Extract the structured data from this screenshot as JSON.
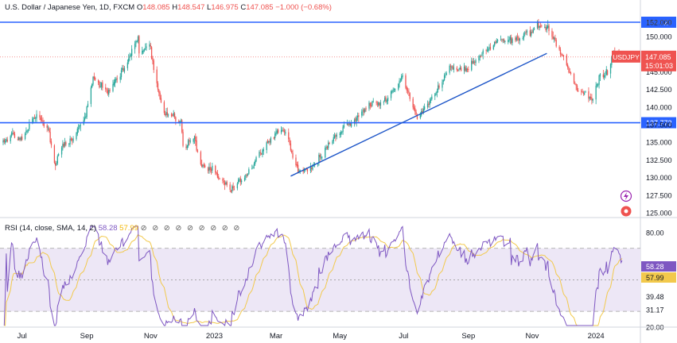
{
  "header": {
    "title": "U.S. Dollar / Japanese Yen, 1D, FXCM",
    "o_label": "O",
    "o": "148.085",
    "h_label": "H",
    "h": "148.547",
    "l_label": "L",
    "l": "146.975",
    "c_label": "C",
    "c": "147.085",
    "change": "−1.000 (−0.68%)"
  },
  "rsi_header": {
    "label": "RSI (14, close, SMA, 14, 2)",
    "rsi_value": "58.28",
    "sma_value": "57.99",
    "icons": "⊘ ⊘ ⊘ ⊘ ⊘ ⊘ ⊘ ⊘ ⊘"
  },
  "colors": {
    "up": "#26a69a",
    "down": "#ef5350",
    "level": "#2962ff",
    "trend": "#1e56c8",
    "rsi": "#7e57c2",
    "rsi_sma": "#f2c94c",
    "band": "#ede7f6"
  },
  "icons": [
    "lightning-icon",
    "ticket-icon"
  ],
  "chart_data": [
    {
      "type": "candlestick",
      "title": "U.S. Dollar / Japanese Yen, 1D, FXCM",
      "symbol": "USDJPY",
      "last_price": "147.085",
      "countdown": "15:01:03",
      "x_ticks": [
        "Jul",
        "Sep",
        "Nov",
        "2023",
        "Mar",
        "May",
        "Jul",
        "Sep",
        "Nov",
        "2024"
      ],
      "y_ticks": [
        "125.000",
        "127.500",
        "130.000",
        "132.500",
        "135.000",
        "137.500",
        "140.000",
        "142.500",
        "145.000",
        "147.500",
        "150.000",
        "152.000"
      ],
      "ylim": [
        125.0,
        152.5
      ],
      "horizontal_levels": [
        "152.020",
        "137.773"
      ],
      "trendline": [
        [
          "2023-03-15",
          130.2
        ],
        [
          "2023-11-15",
          147.6
        ]
      ],
      "close_anchors": [
        [
          "2022-06-13",
          135.0
        ],
        [
          "2022-06-22",
          136.2
        ],
        [
          "2022-07-01",
          135.2
        ],
        [
          "2022-07-14",
          139.0
        ],
        [
          "2022-07-26",
          136.9
        ],
        [
          "2022-08-02",
          131.6
        ],
        [
          "2022-08-09",
          135.0
        ],
        [
          "2022-08-17",
          135.3
        ],
        [
          "2022-08-31",
          138.9
        ],
        [
          "2022-09-07",
          144.0
        ],
        [
          "2022-09-14",
          143.3
        ],
        [
          "2022-09-22",
          142.3
        ],
        [
          "2022-10-07",
          145.3
        ],
        [
          "2022-10-20",
          150.1
        ],
        [
          "2022-10-21",
          147.7
        ],
        [
          "2022-10-31",
          148.7
        ],
        [
          "2022-11-10",
          141.0
        ],
        [
          "2022-11-15",
          139.2
        ],
        [
          "2022-11-30",
          138.0
        ],
        [
          "2022-12-02",
          134.3
        ],
        [
          "2022-12-13",
          135.5
        ],
        [
          "2022-12-20",
          131.5
        ],
        [
          "2022-12-30",
          131.2
        ],
        [
          "2023-01-16",
          128.2
        ],
        [
          "2023-01-31",
          130.1
        ],
        [
          "2023-02-17",
          134.2
        ],
        [
          "2023-03-08",
          137.1
        ],
        [
          "2023-03-23",
          130.6
        ],
        [
          "2023-04-05",
          131.4
        ],
        [
          "2023-04-20",
          134.7
        ],
        [
          "2023-05-02",
          136.6
        ],
        [
          "2023-05-30",
          140.4
        ],
        [
          "2023-06-15",
          140.9
        ],
        [
          "2023-06-30",
          144.5
        ],
        [
          "2023-07-14",
          138.2
        ],
        [
          "2023-07-28",
          141.2
        ],
        [
          "2023-08-15",
          145.6
        ],
        [
          "2023-08-31",
          145.5
        ],
        [
          "2023-09-15",
          147.8
        ],
        [
          "2023-09-29",
          149.3
        ],
        [
          "2023-10-13",
          149.6
        ],
        [
          "2023-11-01",
          150.9
        ],
        [
          "2023-11-13",
          151.7
        ],
        [
          "2023-11-22",
          149.5
        ],
        [
          "2023-12-01",
          146.8
        ],
        [
          "2023-12-13",
          142.9
        ],
        [
          "2023-12-28",
          141.0
        ],
        [
          "2024-01-05",
          144.6
        ],
        [
          "2024-01-12",
          144.9
        ],
        [
          "2024-01-19",
          148.1
        ],
        [
          "2024-01-24",
          147.6
        ],
        [
          "2024-01-26",
          147.1
        ]
      ]
    },
    {
      "type": "line",
      "title": "RSI (14, close, SMA, 14, 2)",
      "series": [
        {
          "name": "RSI"
        },
        {
          "name": "SMA"
        }
      ],
      "last_rsi": "58.28",
      "last_sma": "57.99",
      "y_ticks": [
        "80.00",
        "39.48",
        "31.17",
        "20.00"
      ],
      "ylim": [
        20,
        85
      ]
    }
  ]
}
